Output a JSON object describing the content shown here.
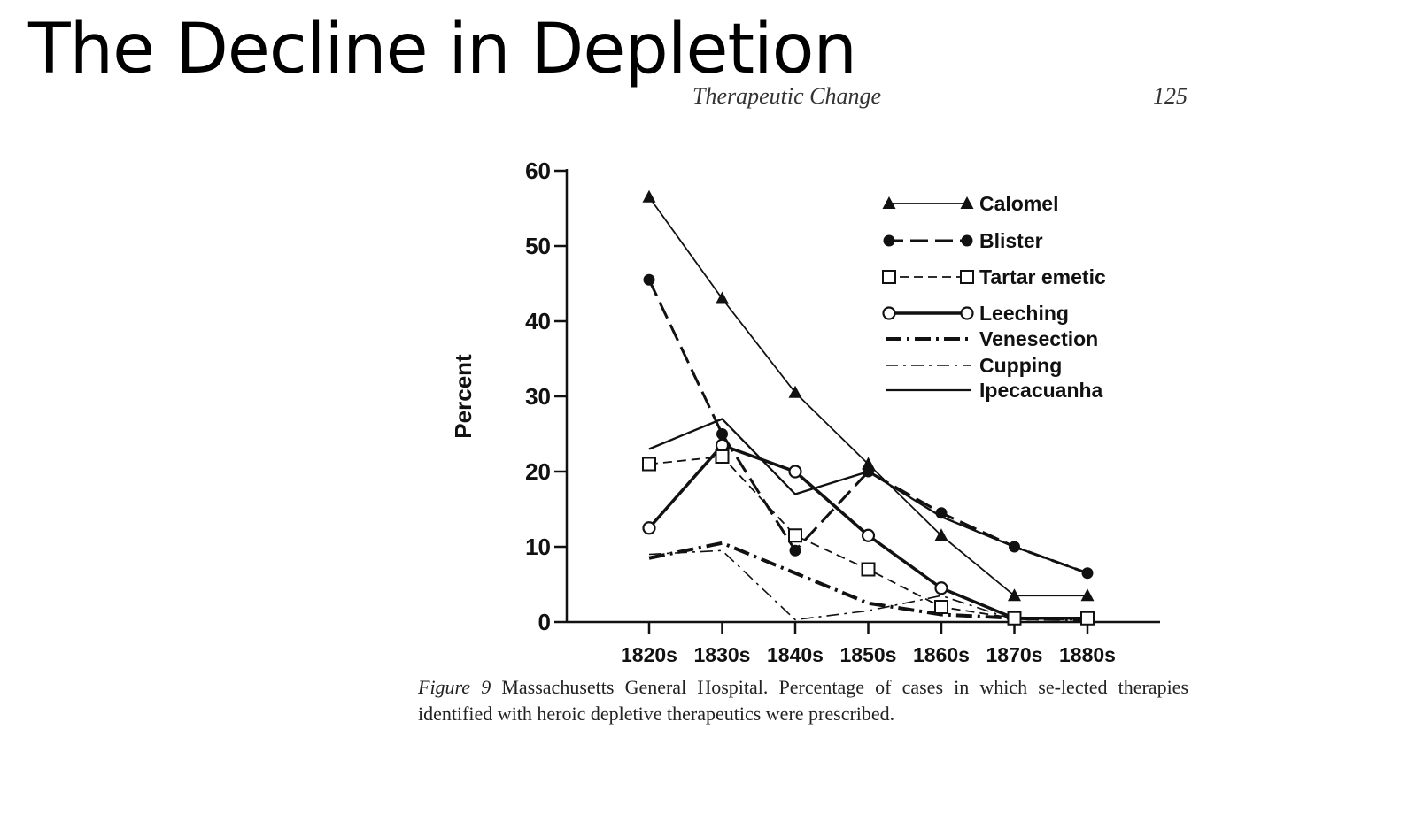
{
  "slide": {
    "title": "The Decline in Depletion"
  },
  "page_header": {
    "running_head": "Therapeutic Change",
    "page_number": "125"
  },
  "caption": {
    "label": "Figure 9",
    "text": "Massachusetts General Hospital. Percentage of cases in which se-lected therapies identified with heroic depletive therapeutics were prescribed."
  },
  "chart_data": {
    "type": "line",
    "title": "",
    "xlabel": "",
    "ylabel": "Percent",
    "categories": [
      "1820s",
      "1830s",
      "1840s",
      "1850s",
      "1860s",
      "1870s",
      "1880s"
    ],
    "ylim": [
      0,
      60
    ],
    "yticks": [
      0,
      10,
      20,
      30,
      40,
      50,
      60
    ],
    "grid": false,
    "legend_position": "top-right",
    "series": [
      {
        "name": "Calomel",
        "values": [
          56.5,
          43,
          30.5,
          21,
          11.5,
          3.5,
          3.5
        ],
        "style": "solid-thin",
        "marker": "triangle"
      },
      {
        "name": "Blister",
        "values": [
          45.5,
          25,
          9.5,
          20,
          14.5,
          10,
          6.5
        ],
        "style": "dashed",
        "marker": "filled-circle"
      },
      {
        "name": "Tartar emetic",
        "values": [
          21,
          22,
          11.5,
          7,
          2,
          0.5,
          0.5
        ],
        "style": "dashed-thin",
        "marker": "open-square"
      },
      {
        "name": "Leeching",
        "values": [
          12.5,
          23.5,
          20,
          11.5,
          4.5,
          0.5,
          0.5
        ],
        "style": "solid-thick",
        "marker": "open-circle"
      },
      {
        "name": "Venesection",
        "values": [
          8.5,
          10.5,
          6.5,
          2.5,
          1,
          0.5,
          0.3
        ],
        "style": "dash-dot-thick",
        "marker": "none"
      },
      {
        "name": "Cupping",
        "values": [
          9,
          9.5,
          0.3,
          1.5,
          3.5,
          0.3,
          0.3
        ],
        "style": "dash-dot-thin",
        "marker": "none"
      },
      {
        "name": "Ipecacuanha",
        "values": [
          23,
          27,
          17,
          20,
          14,
          10,
          6.5
        ],
        "style": "solid",
        "marker": "none"
      }
    ]
  }
}
